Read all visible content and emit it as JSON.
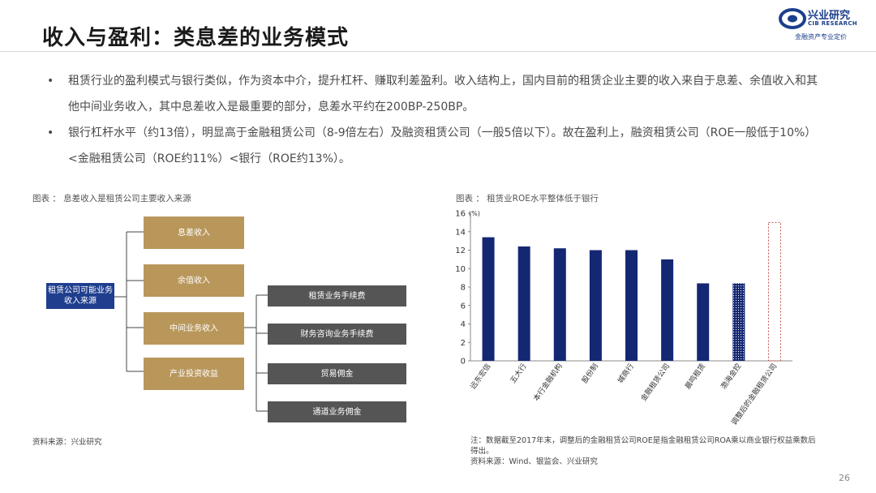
{
  "header": {
    "title": "收入与盈利：类息差的业务模式",
    "logo_cn": "兴业研究",
    "logo_en": "CIB RESEARCH",
    "logo_slogan": "金融资产专业定价"
  },
  "bullets": [
    "租赁行业的盈利模式与银行类似，作为资本中介，提升杠杆、赚取利差盈利。收入结构上，国内目前的租赁企业主要的收入来自于息差、余值收入和其他中间业务收入，其中息差收入是最重要的部分，息差水平约在200BP-250BP。",
    "银行杠杆水平（约13倍），明显高于金融租赁公司（8-9倍左右）及融资租赁公司（一般5倍以下）。故在盈利上，融资租赁公司（ROE一般低于10%）<金融租赁公司（ROE约11%）<银行（ROE约13%）。"
  ],
  "flow": {
    "caption": "图表 ： 息差收入是租赁公司主要收入来源",
    "root": "租赁公司可能业务收入来源",
    "level1": [
      "息差收入",
      "余值收入",
      "中间业务收入",
      "产业投资收益"
    ],
    "level2": [
      "租赁业务手续费",
      "财务咨询业务手续费",
      "贸易佣金",
      "通道业务佣金"
    ],
    "source": "资料来源：兴业研究"
  },
  "chart_caption": "图表 ： 租赁业ROE水平整体低于银行",
  "chart_data": {
    "type": "bar",
    "title": "",
    "ylabel": "(%)",
    "ylim": [
      0,
      16
    ],
    "yticks": [
      0,
      2,
      4,
      6,
      8,
      10,
      12,
      14,
      16
    ],
    "categories": [
      "远东宏信",
      "五大行",
      "本行金融机构",
      "股份制",
      "城商行",
      "金融租赁公司",
      "晨鸣租赁",
      "渤海金控",
      "调整后的金融租赁公司"
    ],
    "values": [
      13.4,
      12.4,
      12.2,
      12.0,
      12.0,
      11.0,
      8.4,
      8.4,
      15.0
    ],
    "styles": [
      "solid",
      "solid",
      "solid",
      "solid",
      "solid",
      "solid",
      "solid",
      "dotted",
      "dashed-outline"
    ],
    "colors": {
      "bar": "#142773",
      "outline": "#c0504d"
    }
  },
  "chart_note": {
    "note": "注：数据截至2017年末，调整后的金融租赁公司ROE是指金融租赁公司ROA乘以商业银行权益乘数后得出。",
    "source": "资料来源：Wind、银监会、兴业研究"
  },
  "page_number": "26"
}
